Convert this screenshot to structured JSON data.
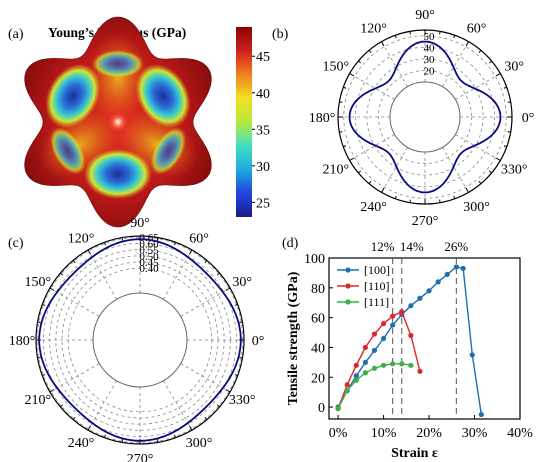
{
  "panel_labels": [
    "(a)",
    "(b)",
    "(c)",
    "(d)"
  ],
  "chart_data": [
    {
      "panel": "(a)",
      "type": "heatmap",
      "title": "Young’s Modulus (GPa)",
      "colorbar": {
        "ticks": [
          25,
          30,
          35,
          40,
          45
        ],
        "range": [
          23,
          49
        ],
        "colors": [
          "#1a1a8c",
          "#2244dd",
          "#20aadd",
          "#40e0c0",
          "#b8e840",
          "#f0e020",
          "#f08020",
          "#d02020",
          "#8c0000"
        ]
      },
      "surface": {
        "lobes": 6,
        "max_color": "#a01010",
        "min_color": "#1e3a9c"
      }
    },
    {
      "panel": "(b)",
      "type": "polar",
      "angle_labels": [
        "90°",
        "60°",
        "30°",
        "0°",
        "330°",
        "300°",
        "270°",
        "240°",
        "210°",
        "180°",
        "150°",
        "120°"
      ],
      "radial_ticks": [
        20,
        30,
        40,
        50
      ],
      "r_range": [
        10,
        55
      ],
      "curve": {
        "base": 34.5,
        "amp4": 10.5,
        "color": "#0a0a80"
      }
    },
    {
      "panel": "(c)",
      "type": "polar",
      "angle_labels": [
        "90°",
        "60°",
        "30°",
        "0°",
        "330°",
        "300°",
        "270°",
        "240°",
        "210°",
        "180°",
        "150°",
        "120°"
      ],
      "radial_ticks": [
        "0.65",
        "0.60",
        "0.55",
        "0.50",
        "0.45",
        "0.40"
      ],
      "r_range": [
        0.2,
        0.66
      ],
      "curve": {
        "base": 0.607,
        "amp4": 0.027,
        "color": "#0a0a80"
      }
    },
    {
      "panel": "(d)",
      "type": "line",
      "xlabel": "Strain ε",
      "ylabel": "Tensile strength (GPa)",
      "xlim": [
        -2,
        40
      ],
      "ylim": [
        -8,
        100
      ],
      "x_ticks": [
        "0%",
        "10%",
        "20%",
        "30%",
        "40%"
      ],
      "x_tick_values": [
        0,
        10,
        20,
        30,
        40
      ],
      "y_ticks": [
        0,
        20,
        40,
        60,
        80,
        100
      ],
      "vlines": [
        {
          "x": 12,
          "label": "12%"
        },
        {
          "x": 14,
          "label": "14%"
        },
        {
          "x": 26,
          "label": "26%"
        }
      ],
      "series": [
        {
          "name": "[100]",
          "color": "#1f6fb0",
          "x": [
            0,
            2,
            4,
            6,
            8,
            10,
            12,
            14,
            16,
            18,
            20,
            22,
            24,
            26,
            27.5,
            29.5,
            31.5
          ],
          "y": [
            0,
            11,
            21,
            30,
            38,
            46,
            55,
            62,
            68,
            73,
            78,
            84,
            89,
            94,
            93,
            35,
            -5
          ]
        },
        {
          "name": "[110]",
          "color": "#e0262c",
          "x": [
            0,
            2,
            4,
            6,
            8,
            10,
            12,
            14,
            16,
            18
          ],
          "y": [
            -1,
            15,
            28,
            40,
            49,
            56,
            61,
            64,
            48,
            24
          ]
        },
        {
          "name": "[111]",
          "color": "#3cb043",
          "x": [
            0,
            2,
            4,
            6,
            8,
            10,
            12,
            14,
            16
          ],
          "y": [
            -1,
            11,
            18,
            23,
            26,
            28,
            29,
            29,
            28
          ]
        }
      ]
    }
  ]
}
